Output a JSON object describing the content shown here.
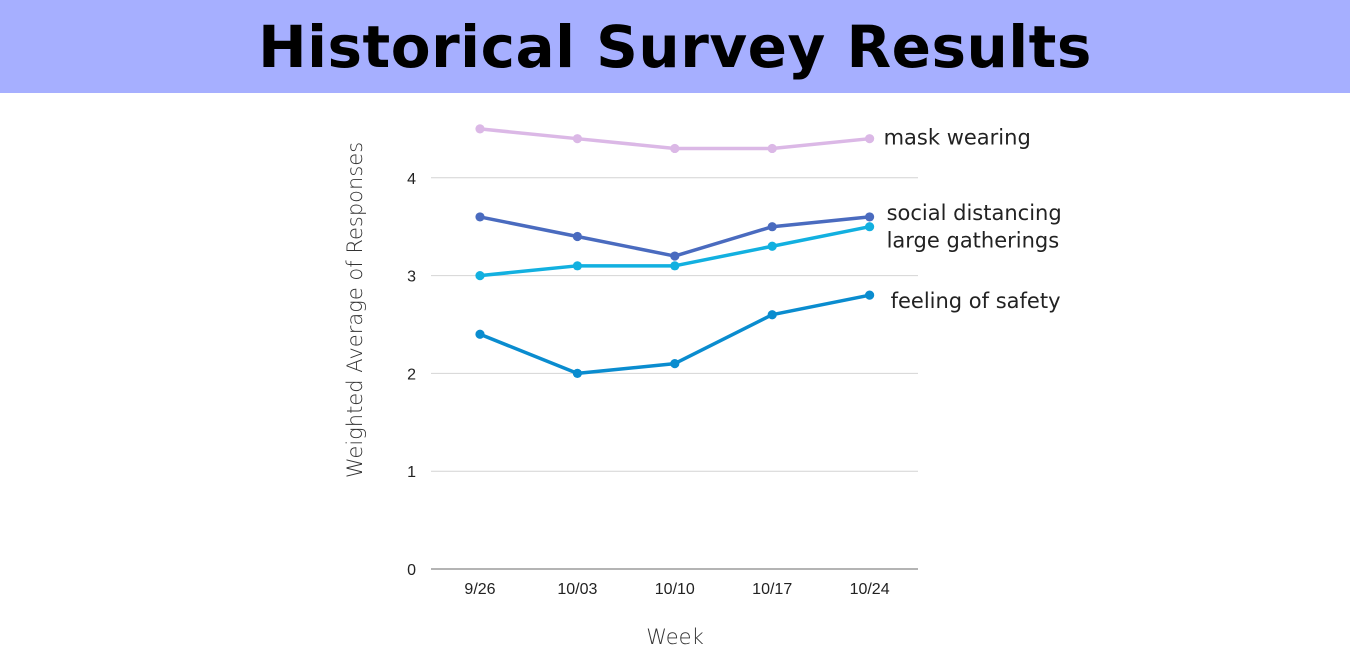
{
  "header": {
    "title": "Historical Survey Results"
  },
  "chart_data": {
    "type": "line",
    "title": "Historical Survey Results",
    "xlabel": "Week",
    "ylabel": "Weighted Average of Responses",
    "categories": [
      "9/26",
      "10/03",
      "10/10",
      "10/17",
      "10/24"
    ],
    "ylim": [
      0,
      4.5
    ],
    "yticks": [
      0,
      1,
      2,
      3,
      4
    ],
    "grid": true,
    "legend": "inline labels at right end of lines",
    "series": [
      {
        "name": "mask wearing",
        "values": [
          4.5,
          4.4,
          4.3,
          4.3,
          4.4
        ],
        "color": "#dbb8e6"
      },
      {
        "name": "social distancing",
        "values": [
          3.6,
          3.4,
          3.2,
          3.5,
          3.6
        ],
        "color": "#4a6bbf"
      },
      {
        "name": "large gatherings",
        "values": [
          3.0,
          3.1,
          3.1,
          3.3,
          3.5
        ],
        "color": "#12b0e0"
      },
      {
        "name": "feeling of safety",
        "values": [
          2.4,
          2.0,
          2.1,
          2.6,
          2.8
        ],
        "color": "#0a8ccf"
      }
    ]
  }
}
